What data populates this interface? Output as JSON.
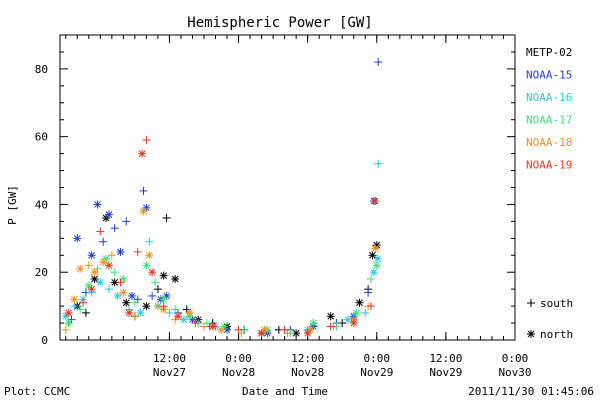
{
  "chart_data": {
    "type": "scatter",
    "title": "Hemispheric Power [GW]",
    "ylabel": "P [GW]",
    "xlabel": "Date and Time",
    "ylim": [
      0,
      90
    ],
    "xlim": [
      "2011-11-26 17:00",
      "2011-11-30 00:00"
    ],
    "y_ticks": [
      0,
      20,
      40,
      60,
      80
    ],
    "x_ticks": [
      {
        "time": "2011-11-27 12:00",
        "top": "12:00",
        "bottom": "Nov27"
      },
      {
        "time": "2011-11-28 00:00",
        "top": "0:00",
        "bottom": "Nov28"
      },
      {
        "time": "2011-11-28 12:00",
        "top": "12:00",
        "bottom": "Nov28"
      },
      {
        "time": "2011-11-29 00:00",
        "top": "0:00",
        "bottom": "Nov29"
      },
      {
        "time": "2011-11-29 12:00",
        "top": "12:00",
        "bottom": "Nov29"
      },
      {
        "time": "2011-11-30 00:00",
        "top": "0:00",
        "bottom": "Nov30"
      }
    ],
    "legend": {
      "position": "right",
      "satellites": [
        {
          "name": "METP-02",
          "color": "#000000"
        },
        {
          "name": "NOAA-15",
          "color": "#1b3fd8"
        },
        {
          "name": "NOAA-16",
          "color": "#2fc6e0"
        },
        {
          "name": "NOAA-17",
          "color": "#3ee07a"
        },
        {
          "name": "NOAA-18",
          "color": "#f0901e"
        },
        {
          "name": "NOAA-19",
          "color": "#e23a20"
        }
      ],
      "markers": [
        {
          "symbol": "+",
          "label": "south"
        },
        {
          "symbol": "*",
          "label": "north"
        }
      ]
    },
    "series": [
      {
        "name": "METP-02",
        "color": "#000000",
        "points": [
          [
            "2011-11-26 18:30",
            5,
            "+"
          ],
          [
            "2011-11-26 20:00",
            10,
            "*"
          ],
          [
            "2011-11-26 21:30",
            8,
            "+"
          ],
          [
            "2011-11-26 23:00",
            18,
            "*"
          ],
          [
            "2011-11-27 01:00",
            36,
            "*"
          ],
          [
            "2011-11-27 02:30",
            17,
            "*"
          ],
          [
            "2011-11-27 04:30",
            11,
            "*"
          ],
          [
            "2011-11-27 06:00",
            7,
            "+"
          ],
          [
            "2011-11-27 08:00",
            10,
            "*"
          ],
          [
            "2011-11-27 10:00",
            15,
            "+"
          ],
          [
            "2011-11-27 11:00",
            19,
            "*"
          ],
          [
            "2011-11-27 11:30",
            36,
            "+"
          ],
          [
            "2011-11-27 13:00",
            18,
            "*"
          ],
          [
            "2011-11-27 15:00",
            9,
            "+"
          ],
          [
            "2011-11-27 17:00",
            6,
            "*"
          ],
          [
            "2011-11-27 19:30",
            5,
            "+"
          ],
          [
            "2011-11-27 22:00",
            4,
            "*"
          ],
          [
            "2011-11-28 01:00",
            3,
            "+"
          ],
          [
            "2011-11-28 04:00",
            2,
            "*"
          ],
          [
            "2011-11-28 07:00",
            3,
            "+"
          ],
          [
            "2011-11-28 10:00",
            2,
            "*"
          ],
          [
            "2011-11-28 13:00",
            4,
            "+"
          ],
          [
            "2011-11-28 16:00",
            7,
            "*"
          ],
          [
            "2011-11-28 18:00",
            5,
            "+"
          ],
          [
            "2011-11-28 21:00",
            11,
            "*"
          ],
          [
            "2011-11-28 22:30",
            15,
            "+"
          ],
          [
            "2011-11-28 23:15",
            25,
            "*"
          ],
          [
            "2011-11-29 00:00",
            28,
            "*"
          ]
        ]
      },
      {
        "name": "NOAA-15",
        "color": "#1b3fd8",
        "points": [
          [
            "2011-11-26 19:00",
            6,
            "+"
          ],
          [
            "2011-11-26 20:00",
            30,
            "*"
          ],
          [
            "2011-11-26 21:30",
            14,
            "+"
          ],
          [
            "2011-11-26 22:30",
            25,
            "*"
          ],
          [
            "2011-11-26 23:30",
            40,
            "*"
          ],
          [
            "2011-11-27 00:30",
            29,
            "+"
          ],
          [
            "2011-11-27 01:30",
            37,
            "*"
          ],
          [
            "2011-11-27 02:30",
            33,
            "+"
          ],
          [
            "2011-11-27 03:30",
            26,
            "*"
          ],
          [
            "2011-11-27 04:30",
            35,
            "+"
          ],
          [
            "2011-11-27 05:30",
            13,
            "*"
          ],
          [
            "2011-11-27 06:30",
            12,
            "+"
          ],
          [
            "2011-11-27 07:30",
            44,
            "+"
          ],
          [
            "2011-11-27 08:00",
            39,
            "*"
          ],
          [
            "2011-11-27 09:00",
            13,
            "+"
          ],
          [
            "2011-11-27 10:30",
            12,
            "*"
          ],
          [
            "2011-11-27 11:30",
            13,
            "*"
          ],
          [
            "2011-11-27 13:30",
            8,
            "+"
          ],
          [
            "2011-11-27 16:00",
            6,
            "*"
          ],
          [
            "2011-11-27 19:00",
            4,
            "+"
          ],
          [
            "2011-11-27 22:00",
            3,
            "*"
          ],
          [
            "2011-11-28 01:00",
            3,
            "+"
          ],
          [
            "2011-11-28 05:00",
            2,
            "*"
          ],
          [
            "2011-11-28 09:00",
            3,
            "+"
          ],
          [
            "2011-11-28 13:00",
            4,
            "*"
          ],
          [
            "2011-11-28 17:00",
            5,
            "+"
          ],
          [
            "2011-11-28 20:00",
            7,
            "*"
          ],
          [
            "2011-11-28 22:30",
            14,
            "+"
          ],
          [
            "2011-11-28 23:30",
            41,
            "*"
          ],
          [
            "2011-11-29 00:15",
            82,
            "+"
          ]
        ]
      },
      {
        "name": "NOAA-16",
        "color": "#2fc6e0",
        "points": [
          [
            "2011-11-26 18:00",
            7,
            "*"
          ],
          [
            "2011-11-26 19:30",
            10,
            "+"
          ],
          [
            "2011-11-26 21:00",
            12,
            "*"
          ],
          [
            "2011-11-26 22:30",
            14,
            "+"
          ],
          [
            "2011-11-27 00:00",
            17,
            "*"
          ],
          [
            "2011-11-27 01:30",
            15,
            "+"
          ],
          [
            "2011-11-27 03:00",
            13,
            "*"
          ],
          [
            "2011-11-27 05:00",
            9,
            "+"
          ],
          [
            "2011-11-27 07:00",
            8,
            "*"
          ],
          [
            "2011-11-27 08:30",
            29,
            "+"
          ],
          [
            "2011-11-27 10:00",
            10,
            "*"
          ],
          [
            "2011-11-27 12:00",
            8,
            "+"
          ],
          [
            "2011-11-27 14:30",
            6,
            "*"
          ],
          [
            "2011-11-27 17:00",
            5,
            "+"
          ],
          [
            "2011-11-27 20:00",
            4,
            "*"
          ],
          [
            "2011-11-28 00:00",
            3,
            "+"
          ],
          [
            "2011-11-28 04:00",
            2,
            "*"
          ],
          [
            "2011-11-28 08:00",
            3,
            "+"
          ],
          [
            "2011-11-28 12:00",
            3,
            "*"
          ],
          [
            "2011-11-28 16:00",
            4,
            "+"
          ],
          [
            "2011-11-28 19:00",
            6,
            "*"
          ],
          [
            "2011-11-28 22:00",
            8,
            "+"
          ],
          [
            "2011-11-28 23:30",
            20,
            "*"
          ],
          [
            "2011-11-29 00:10",
            24,
            "*"
          ],
          [
            "2011-11-29 00:15",
            52,
            "+"
          ]
        ]
      },
      {
        "name": "NOAA-17",
        "color": "#3ee07a",
        "points": [
          [
            "2011-11-26 18:30",
            5,
            "*"
          ],
          [
            "2011-11-26 20:30",
            9,
            "+"
          ],
          [
            "2011-11-26 22:00",
            16,
            "*"
          ],
          [
            "2011-11-26 23:30",
            21,
            "+"
          ],
          [
            "2011-11-27 01:00",
            24,
            "*"
          ],
          [
            "2011-11-27 02:30",
            20,
            "+"
          ],
          [
            "2011-11-27 04:00",
            18,
            "*"
          ],
          [
            "2011-11-27 06:00",
            11,
            "+"
          ],
          [
            "2011-11-27 08:00",
            22,
            "*"
          ],
          [
            "2011-11-27 09:30",
            17,
            "+"
          ],
          [
            "2011-11-27 11:00",
            12,
            "*"
          ],
          [
            "2011-11-27 13:00",
            9,
            "+"
          ],
          [
            "2011-11-27 15:30",
            7,
            "*"
          ],
          [
            "2011-11-27 18:30",
            5,
            "+"
          ],
          [
            "2011-11-27 21:30",
            4,
            "*"
          ],
          [
            "2011-11-28 01:00",
            3,
            "+"
          ],
          [
            "2011-11-28 05:00",
            3,
            "*"
          ],
          [
            "2011-11-28 09:00",
            2,
            "+"
          ],
          [
            "2011-11-28 13:00",
            5,
            "*"
          ],
          [
            "2011-11-28 17:00",
            4,
            "+"
          ],
          [
            "2011-11-28 20:30",
            8,
            "*"
          ],
          [
            "2011-11-28 23:00",
            18,
            "+"
          ],
          [
            "2011-11-29 00:00",
            22,
            "*"
          ]
        ]
      },
      {
        "name": "NOAA-18",
        "color": "#f0901e",
        "points": [
          [
            "2011-11-26 18:00",
            3,
            "+"
          ],
          [
            "2011-11-26 19:30",
            12,
            "*"
          ],
          [
            "2011-11-26 20:30",
            21,
            "*"
          ],
          [
            "2011-11-26 22:00",
            22,
            "+"
          ],
          [
            "2011-11-26 23:00",
            20,
            "*"
          ],
          [
            "2011-11-27 00:30",
            23,
            "*"
          ],
          [
            "2011-11-27 02:00",
            25,
            "+"
          ],
          [
            "2011-11-27 04:00",
            14,
            "*"
          ],
          [
            "2011-11-27 06:00",
            7,
            "+"
          ],
          [
            "2011-11-27 07:30",
            38,
            "*"
          ],
          [
            "2011-11-27 08:30",
            25,
            "*"
          ],
          [
            "2011-11-27 10:00",
            10,
            "+"
          ],
          [
            "2011-11-27 11:00",
            9,
            "*"
          ],
          [
            "2011-11-27 13:00",
            6,
            "+"
          ],
          [
            "2011-11-27 15:30",
            8,
            "*"
          ],
          [
            "2011-11-27 18:00",
            4,
            "+"
          ],
          [
            "2011-11-27 21:00",
            3,
            "*"
          ],
          [
            "2011-11-28 00:30",
            2,
            "+"
          ],
          [
            "2011-11-28 04:30",
            3,
            "*"
          ],
          [
            "2011-11-28 08:30",
            2,
            "+"
          ],
          [
            "2011-11-28 12:30",
            3,
            "*"
          ],
          [
            "2011-11-28 16:30",
            4,
            "+"
          ],
          [
            "2011-11-28 20:00",
            6,
            "*"
          ],
          [
            "2011-11-28 22:30",
            10,
            "+"
          ],
          [
            "2011-11-28 23:45",
            27,
            "*"
          ]
        ]
      },
      {
        "name": "NOAA-19",
        "color": "#e23a20",
        "points": [
          [
            "2011-11-26 18:30",
            8,
            "*"
          ],
          [
            "2011-11-26 21:00",
            11,
            "+"
          ],
          [
            "2011-11-26 22:30",
            15,
            "*"
          ],
          [
            "2011-11-27 00:00",
            32,
            "+"
          ],
          [
            "2011-11-27 01:30",
            22,
            "*"
          ],
          [
            "2011-11-27 03:30",
            17,
            "+"
          ],
          [
            "2011-11-27 05:00",
            8,
            "*"
          ],
          [
            "2011-11-27 06:30",
            26,
            "+"
          ],
          [
            "2011-11-27 07:15",
            55,
            "*"
          ],
          [
            "2011-11-27 08:00",
            59,
            "+"
          ],
          [
            "2011-11-27 09:00",
            20,
            "*"
          ],
          [
            "2011-11-27 11:00",
            10,
            "+"
          ],
          [
            "2011-11-27 13:30",
            7,
            "*"
          ],
          [
            "2011-11-27 16:30",
            5,
            "+"
          ],
          [
            "2011-11-27 19:30",
            4,
            "*"
          ],
          [
            "2011-11-28 00:00",
            3,
            "+"
          ],
          [
            "2011-11-28 04:00",
            2,
            "*"
          ],
          [
            "2011-11-28 08:00",
            3,
            "+"
          ],
          [
            "2011-11-28 12:00",
            2,
            "*"
          ],
          [
            "2011-11-28 16:00",
            4,
            "+"
          ],
          [
            "2011-11-28 20:00",
            5,
            "*"
          ],
          [
            "2011-11-28 23:00",
            10,
            "+"
          ],
          [
            "2011-11-28 23:45",
            41,
            "*"
          ]
        ]
      }
    ]
  },
  "footer": {
    "left": "Plot: CCMC",
    "center": "Date and Time",
    "right": "2011/11/30 01:45:06"
  }
}
